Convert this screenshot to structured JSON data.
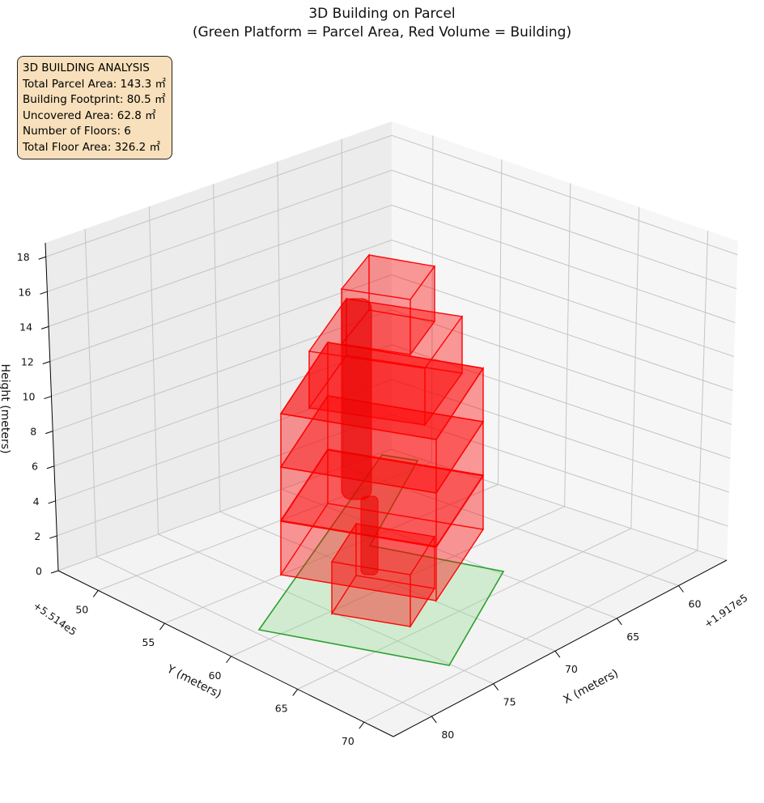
{
  "chart_data": {
    "type": "3d-bar",
    "title_line1": "3D Building on Parcel",
    "title_line2": "(Green Platform = Parcel Area, Red Volume = Building)",
    "xlabel": "X (meters)",
    "ylabel": "Y (meters)",
    "zlabel": "Height (meters)",
    "x_offset": "+1.917e5",
    "y_offset": "+5.514e5",
    "x_ticks": [
      "60",
      "65",
      "70",
      "75",
      "80"
    ],
    "x_tick_values": [
      60,
      65,
      70,
      75,
      80
    ],
    "y_ticks": [
      "50",
      "55",
      "60",
      "65",
      "70"
    ],
    "y_tick_values": [
      50,
      55,
      60,
      65,
      70
    ],
    "z_ticks": [
      "0",
      "2",
      "4",
      "6",
      "8",
      "10",
      "12",
      "14",
      "16",
      "18"
    ],
    "z_tick_values": [
      0,
      2,
      4,
      6,
      8,
      10,
      12,
      14,
      16,
      18
    ],
    "xlim": [
      56.1,
      83.1
    ],
    "ylim": [
      47.0,
      72.2
    ],
    "zlim": [
      0,
      18.8
    ],
    "grid": true,
    "parcel_color": "#2ca02c",
    "building_color": "#ff0000",
    "num_floors": 6,
    "parcel_area_m2": 143.3,
    "building_footprint_m2": 80.5,
    "uncovered_area_m2": 62.8,
    "total_floor_area_m2": 326.2
  },
  "info_box": {
    "heading": "3D BUILDING ANALYSIS",
    "lines": [
      "Total Parcel Area: 143.3 ㎡",
      "Building Footprint: 80.5 ㎡",
      "Uncovered Area: 62.8 ㎡",
      "Number of Floors: 6",
      "Total Floor Area: 326.2 ㎡"
    ]
  }
}
